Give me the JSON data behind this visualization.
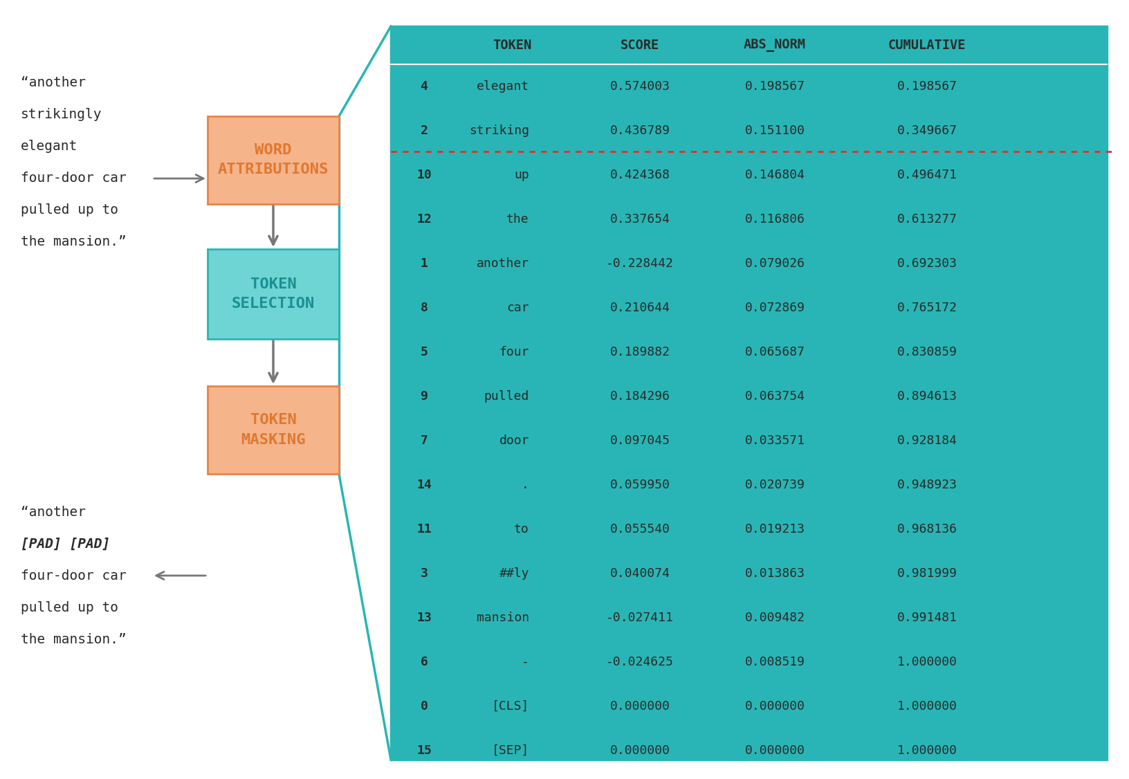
{
  "background_color": "#ffffff",
  "table_bg_color": "#29b5b5",
  "orange_box_fill": "#f5b48a",
  "orange_box_edge": "#e8834a",
  "orange_text_color": "#e07830",
  "teal_box_fill": "#6ed4d4",
  "teal_box_edge": "#29b5b5",
  "teal_text_color": "#1a9090",
  "dark_text_color": "#2a2a2a",
  "threshold_color": "#e03030",
  "arrow_color": "#777777",
  "connector_color": "#29b5b5",
  "header_cols": [
    "",
    "TOKEN",
    "SCORE",
    "ABS_NORM",
    "CUMULATIVE"
  ],
  "rows": [
    [
      "4",
      "elegant",
      "0.574003",
      "0.198567",
      "0.198567"
    ],
    [
      "2",
      "striking",
      "0.436789",
      "0.151100",
      "0.349667"
    ],
    [
      "10",
      "up",
      "0.424368",
      "0.146804",
      "0.496471"
    ],
    [
      "12",
      "the",
      "0.337654",
      "0.116806",
      "0.613277"
    ],
    [
      "1",
      "another",
      "-0.228442",
      "0.079026",
      "0.692303"
    ],
    [
      "8",
      "car",
      "0.210644",
      "0.072869",
      "0.765172"
    ],
    [
      "5",
      "four",
      "0.189882",
      "0.065687",
      "0.830859"
    ],
    [
      "9",
      "pulled",
      "0.184296",
      "0.063754",
      "0.894613"
    ],
    [
      "7",
      "door",
      "0.097045",
      "0.033571",
      "0.928184"
    ],
    [
      "14",
      ".",
      "0.059950",
      "0.020739",
      "0.948923"
    ],
    [
      "11",
      "to",
      "0.055540",
      "0.019213",
      "0.968136"
    ],
    [
      "3",
      "##ly",
      "0.040074",
      "0.013863",
      "0.981999"
    ],
    [
      "13",
      "mansion",
      "-0.027411",
      "0.009482",
      "0.991481"
    ],
    [
      "6",
      "-",
      "-0.024625",
      "0.008519",
      "1.000000"
    ],
    [
      "0",
      "[CLS]",
      "0.000000",
      "0.000000",
      "1.000000"
    ],
    [
      "15",
      "[SEP]",
      "0.000000",
      "0.000000",
      "1.000000"
    ]
  ],
  "threshold_after_row": 2,
  "text1_lines": [
    "“another",
    "strikingly",
    "elegant",
    "four-door car",
    "pulled up to",
    "the mansion.”"
  ],
  "text2_lines": [
    "“another",
    "[PAD] [PAD]",
    "four-door car",
    "pulled up to",
    "the mansion.”"
  ],
  "text2_bold_lines": [
    "[PAD] [PAD]"
  ],
  "box1_label": [
    "WORD",
    "ATTRIBUTIONS"
  ],
  "box2_label": [
    "TOKEN",
    "SELECTION"
  ],
  "box3_label": [
    "TOKEN",
    "MASKING"
  ],
  "figsize": [
    16.33,
    11.26
  ]
}
